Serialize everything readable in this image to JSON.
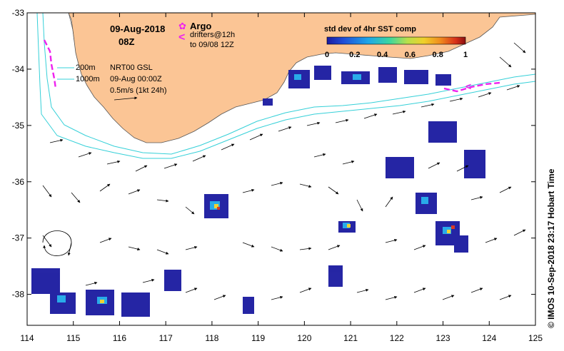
{
  "title": {
    "date": "09-Aug-2018",
    "time": "08Z"
  },
  "legend": {
    "argo_label": "Argo",
    "drifters_label": "drifters@12h",
    "drifters_to": "to 09/08 12Z",
    "colorbar_title": "std dev of 4hr SST comp",
    "colorbar_ticks": [
      "0",
      "0.2",
      "0.4",
      "0.6",
      "0.8",
      "1"
    ],
    "colorbar_colors": [
      "#1a1aa0",
      "#1f4ed8",
      "#1ea7e8",
      "#3ad6a0",
      "#b8e04a",
      "#f0d02a",
      "#f08a1e",
      "#d8301a",
      "#8a1010"
    ]
  },
  "annotations": {
    "isobath_200": "200m",
    "isobath_1000": "1000m",
    "product": "NRT00 GSL",
    "analysis_time": "09-Aug 00:00Z",
    "scale_label": "0.5m/s (1kt 24h)"
  },
  "axes": {
    "x_ticks": [
      "114",
      "115",
      "116",
      "117",
      "118",
      "119",
      "120",
      "121",
      "122",
      "123",
      "124",
      "125"
    ],
    "y_ticks": [
      "-33",
      "-34",
      "-35",
      "-36",
      "-37",
      "-38"
    ]
  },
  "credit": "© IMOS 10-Sep-2018 23:17 Hobart Time",
  "colors": {
    "land": "#fbc595",
    "isobath": "#35d0d8",
    "argo": "#ee22ee",
    "drifter": "#ee22ee"
  }
}
